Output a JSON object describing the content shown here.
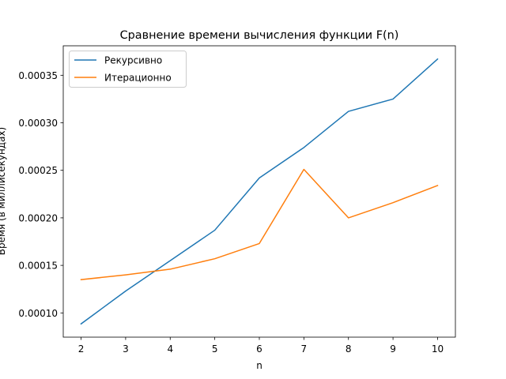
{
  "chart_data": {
    "type": "line",
    "title": "Сравнение времени вычисления функции F(n)",
    "xlabel": "n",
    "ylabel": "Время (в миллисекундах)",
    "x": [
      2,
      3,
      4,
      5,
      6,
      7,
      8,
      9,
      10
    ],
    "xlim": [
      1.6,
      10.4
    ],
    "ylim": [
      7.45e-05,
      0.000381
    ],
    "x_ticks": [
      "2",
      "3",
      "4",
      "5",
      "6",
      "7",
      "8",
      "9",
      "10"
    ],
    "y_ticks": [
      0.0001,
      0.00015,
      0.0002,
      0.00025,
      0.0003,
      0.00035
    ],
    "y_tick_labels": [
      "0.00010",
      "0.00015",
      "0.00020",
      "0.00025",
      "0.00030",
      "0.00035"
    ],
    "grid": false,
    "legend_position": "top-left",
    "series": [
      {
        "name": "Рекурсивно",
        "color": "#1f77b4",
        "values": [
          8.85e-05,
          0.000123,
          0.000155,
          0.000187,
          0.000242,
          0.000274,
          0.000312,
          0.000325,
          0.000367
        ]
      },
      {
        "name": "Итерационно",
        "color": "#ff7f0e",
        "values": [
          0.000135,
          0.00014,
          0.000146,
          0.000157,
          0.000173,
          0.000251,
          0.0002,
          0.000216,
          0.000234
        ]
      }
    ]
  }
}
